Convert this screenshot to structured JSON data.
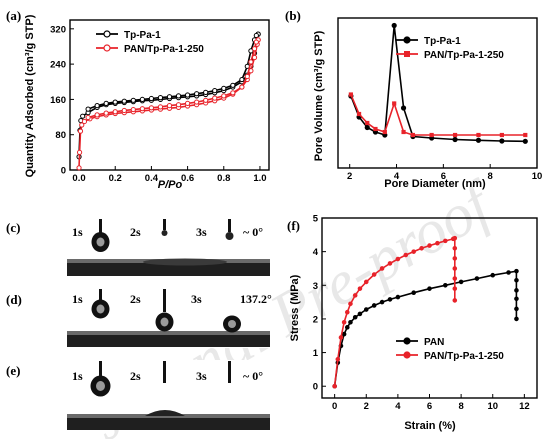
{
  "chart_data": [
    {
      "panel": "(a)",
      "type": "line",
      "xlabel": "P/Po",
      "ylabel": "Quantity Adsorbed (cm³/g STP)",
      "xlim": [
        -0.05,
        1.05
      ],
      "ylim": [
        0,
        340
      ],
      "xticks": [
        0.0,
        0.2,
        0.4,
        0.6,
        0.8,
        1.0
      ],
      "yticks": [
        0,
        80,
        160,
        240,
        320
      ],
      "legend_position": "top-left",
      "series": [
        {
          "name": "Tp-Pa-1",
          "color": "#000000",
          "marker": "open-circle",
          "adsorption": [
            [
              0.0,
              30
            ],
            [
              0.005,
              90
            ],
            [
              0.01,
              112
            ],
            [
              0.02,
              122
            ],
            [
              0.05,
              130
            ],
            [
              0.1,
              142
            ],
            [
              0.15,
              148
            ],
            [
              0.2,
              151
            ],
            [
              0.25,
              153
            ],
            [
              0.3,
              155
            ],
            [
              0.35,
              157
            ],
            [
              0.4,
              158
            ],
            [
              0.45,
              160
            ],
            [
              0.5,
              162
            ],
            [
              0.55,
              164
            ],
            [
              0.6,
              166
            ],
            [
              0.65,
              168
            ],
            [
              0.7,
              171
            ],
            [
              0.75,
              175
            ],
            [
              0.8,
              180
            ],
            [
              0.85,
              188
            ],
            [
              0.9,
              200
            ],
            [
              0.93,
              215
            ],
            [
              0.95,
              235
            ],
            [
              0.97,
              265
            ],
            [
              0.98,
              295
            ],
            [
              0.99,
              308
            ]
          ],
          "desorption": [
            [
              0.99,
              308
            ],
            [
              0.98,
              305
            ],
            [
              0.97,
              295
            ],
            [
              0.95,
              270
            ],
            [
              0.93,
              235
            ],
            [
              0.9,
              205
            ],
            [
              0.85,
              192
            ],
            [
              0.8,
              185
            ],
            [
              0.75,
              180
            ],
            [
              0.7,
              176
            ],
            [
              0.65,
              173
            ],
            [
              0.6,
              170
            ],
            [
              0.55,
              168
            ],
            [
              0.5,
              166
            ],
            [
              0.45,
              164
            ],
            [
              0.4,
              162
            ],
            [
              0.35,
              160
            ],
            [
              0.3,
              158
            ],
            [
              0.25,
              156
            ],
            [
              0.2,
              154
            ],
            [
              0.15,
              151
            ],
            [
              0.1,
              146
            ],
            [
              0.05,
              138
            ]
          ]
        },
        {
          "name": "PAN/Tp-Pa-1-250",
          "color": "#e8232a",
          "marker": "open-circle",
          "adsorption": [
            [
              0.0,
              5
            ],
            [
              0.003,
              40
            ],
            [
              0.008,
              88
            ],
            [
              0.015,
              102
            ],
            [
              0.03,
              110
            ],
            [
              0.06,
              116
            ],
            [
              0.1,
              121
            ],
            [
              0.15,
              125
            ],
            [
              0.2,
              128
            ],
            [
              0.25,
              130
            ],
            [
              0.3,
              132
            ],
            [
              0.35,
              134
            ],
            [
              0.4,
              136
            ],
            [
              0.45,
              138
            ],
            [
              0.5,
              140
            ],
            [
              0.55,
              142
            ],
            [
              0.6,
              145
            ],
            [
              0.65,
              148
            ],
            [
              0.7,
              152
            ],
            [
              0.75,
              157
            ],
            [
              0.8,
              163
            ],
            [
              0.85,
              172
            ],
            [
              0.9,
              188
            ],
            [
              0.93,
              205
            ],
            [
              0.95,
              225
            ],
            [
              0.97,
              255
            ],
            [
              0.985,
              285
            ],
            [
              0.99,
              295
            ]
          ],
          "desorption": [
            [
              0.99,
              295
            ],
            [
              0.98,
              290
            ],
            [
              0.97,
              275
            ],
            [
              0.95,
              245
            ],
            [
              0.93,
              212
            ],
            [
              0.9,
              188
            ],
            [
              0.85,
              175
            ],
            [
              0.8,
              168
            ],
            [
              0.75,
              163
            ],
            [
              0.7,
              158
            ],
            [
              0.65,
              154
            ],
            [
              0.6,
              151
            ],
            [
              0.55,
              148
            ],
            [
              0.5,
              146
            ],
            [
              0.45,
              143
            ],
            [
              0.4,
              141
            ],
            [
              0.35,
              139
            ],
            [
              0.3,
              137
            ],
            [
              0.25,
              135
            ],
            [
              0.2,
              132
            ],
            [
              0.15,
              129
            ],
            [
              0.1,
              125
            ],
            [
              0.05,
              119
            ]
          ]
        }
      ]
    },
    {
      "panel": "(b)",
      "type": "line",
      "xlabel": "Pore Diameter (nm)",
      "ylabel": "Pore Volume (cm³/g STP)",
      "xlim": [
        1.5,
        10
      ],
      "ylim": [
        0,
        1
      ],
      "xticks": [
        2,
        4,
        6,
        8,
        10
      ],
      "yticks": [],
      "legend_position": "top-right",
      "series": [
        {
          "name": "Tp-Pa-1",
          "color": "#000000",
          "marker": "filled-circle",
          "x": [
            2.05,
            2.4,
            2.75,
            3.1,
            3.5,
            3.9,
            4.3,
            4.7,
            5.5,
            6.5,
            7.5,
            8.5,
            9.5
          ],
          "y": [
            0.48,
            0.34,
            0.27,
            0.24,
            0.22,
            0.95,
            0.4,
            0.21,
            0.2,
            0.19,
            0.185,
            0.18,
            0.178
          ]
        },
        {
          "name": "PAN/Tp-Pa-1-250",
          "color": "#e8232a",
          "marker": "filled-square",
          "x": [
            2.05,
            2.4,
            2.75,
            3.1,
            3.5,
            3.9,
            4.3,
            4.7,
            5.5,
            6.5,
            7.5,
            8.5,
            9.5
          ],
          "y": [
            0.49,
            0.36,
            0.3,
            0.26,
            0.24,
            0.43,
            0.24,
            0.22,
            0.22,
            0.22,
            0.22,
            0.22,
            0.22
          ]
        }
      ]
    },
    {
      "panel": "(f)",
      "type": "line",
      "xlabel": "Strain (%)",
      "ylabel": "Stress (MPa)",
      "xlim": [
        -0.8,
        12.8
      ],
      "ylim": [
        -0.35,
        5
      ],
      "xticks": [
        0,
        2,
        4,
        6,
        8,
        10,
        12
      ],
      "yticks": [
        0,
        1,
        2,
        3,
        4,
        5
      ],
      "legend_position": "bottom-right",
      "series": [
        {
          "name": "PAN",
          "color": "#000000",
          "marker": "filled-circle",
          "x": [
            0,
            0.2,
            0.4,
            0.6,
            0.8,
            1.0,
            1.3,
            1.6,
            2.0,
            2.5,
            3.0,
            3.5,
            4.0,
            5.0,
            6.0,
            7.0,
            8.0,
            9.0,
            10.0,
            11.0,
            11.5,
            11.5,
            11.5,
            11.5,
            11.5,
            11.5
          ],
          "y": [
            0,
            0.7,
            1.2,
            1.55,
            1.75,
            1.9,
            2.05,
            2.15,
            2.28,
            2.4,
            2.5,
            2.58,
            2.65,
            2.78,
            2.9,
            3.0,
            3.1,
            3.2,
            3.3,
            3.38,
            3.42,
            3.15,
            2.85,
            2.6,
            2.3,
            2.0
          ]
        },
        {
          "name": "PAN/Tp-Pa-1-250",
          "color": "#e8232a",
          "marker": "filled-circle",
          "x": [
            0,
            0.2,
            0.4,
            0.6,
            0.8,
            1.0,
            1.3,
            1.6,
            2.0,
            2.5,
            3.0,
            3.5,
            4.0,
            4.5,
            5.0,
            5.5,
            6.0,
            6.5,
            7.0,
            7.5,
            7.6,
            7.6,
            7.6,
            7.6,
            7.6,
            7.6,
            7.6
          ],
          "y": [
            0,
            0.8,
            1.45,
            1.9,
            2.2,
            2.45,
            2.7,
            2.9,
            3.1,
            3.32,
            3.5,
            3.65,
            3.78,
            3.9,
            4.0,
            4.1,
            4.18,
            4.25,
            4.32,
            4.38,
            4.4,
            4.1,
            3.8,
            3.5,
            3.2,
            2.9,
            2.55
          ]
        }
      ]
    }
  ],
  "panels": {
    "a": {
      "label": "(a)"
    },
    "b": {
      "label": "(b)"
    },
    "c": {
      "label": "(c)",
      "times": [
        "1s",
        "2s",
        "3s"
      ],
      "angle": "~ 0°"
    },
    "d": {
      "label": "(d)",
      "times": [
        "1s",
        "2s",
        "3s"
      ],
      "angle": "137.2°"
    },
    "e": {
      "label": "(e)",
      "times": [
        "1s",
        "2s",
        "3s"
      ],
      "angle": "~ 0°"
    },
    "f": {
      "label": "(f)"
    }
  },
  "watermark": "Journal Pre-proof"
}
